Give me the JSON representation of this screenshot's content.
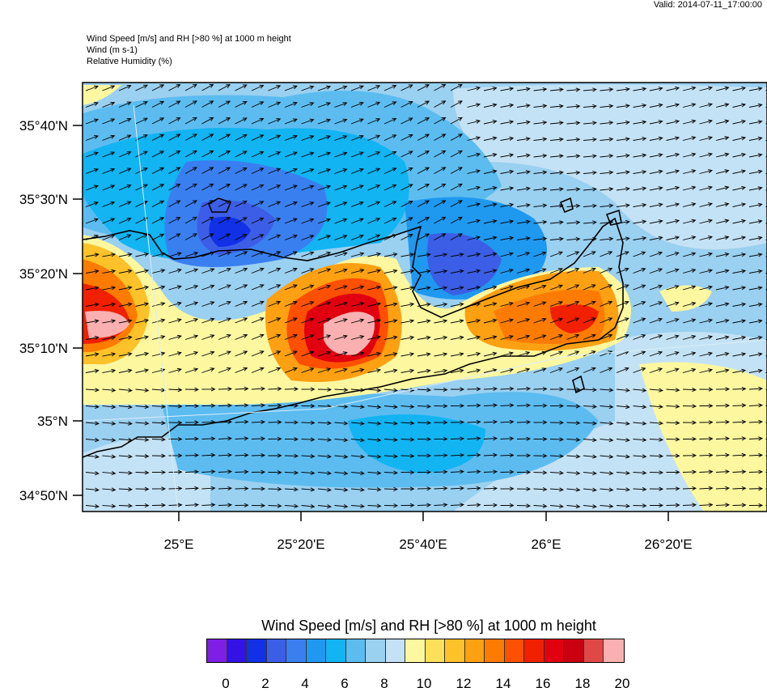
{
  "valid_time": "Valid: 2014-07-11_17:00:00",
  "header": {
    "line1": "Wind Speed [m/s] and RH [>80 %] at 1000 m height",
    "line2": "Wind   (m s-1)",
    "line3": "Relative Humidity   (%)"
  },
  "axes": {
    "lat_labels": [
      "35°40'N",
      "35°30'N",
      "35°20'N",
      "35°10'N",
      "35°N",
      "34°50'N"
    ],
    "lon_labels": [
      "25°E",
      "25°20'E",
      "25°40'E",
      "26°E",
      "26°20'E"
    ]
  },
  "colorbar": {
    "title": "Wind Speed [m/s] and RH [>80 %] at 1000 m height",
    "tick_labels": [
      "0",
      "2",
      "4",
      "6",
      "8",
      "10",
      "12",
      "14",
      "16",
      "18",
      "20"
    ],
    "colors": [
      "#7f1fe6",
      "#3312e6",
      "#1230e6",
      "#3c5ee6",
      "#3a7ff0",
      "#1f99f0",
      "#12b4f2",
      "#5cbcf0",
      "#9ad0f0",
      "#c4e2f5",
      "#fdf7a0",
      "#fde05a",
      "#fdc229",
      "#fda012",
      "#fd7c00",
      "#fd5000",
      "#f02000",
      "#e00010",
      "#c80010",
      "#e04848",
      "#fab0b0"
    ]
  }
}
